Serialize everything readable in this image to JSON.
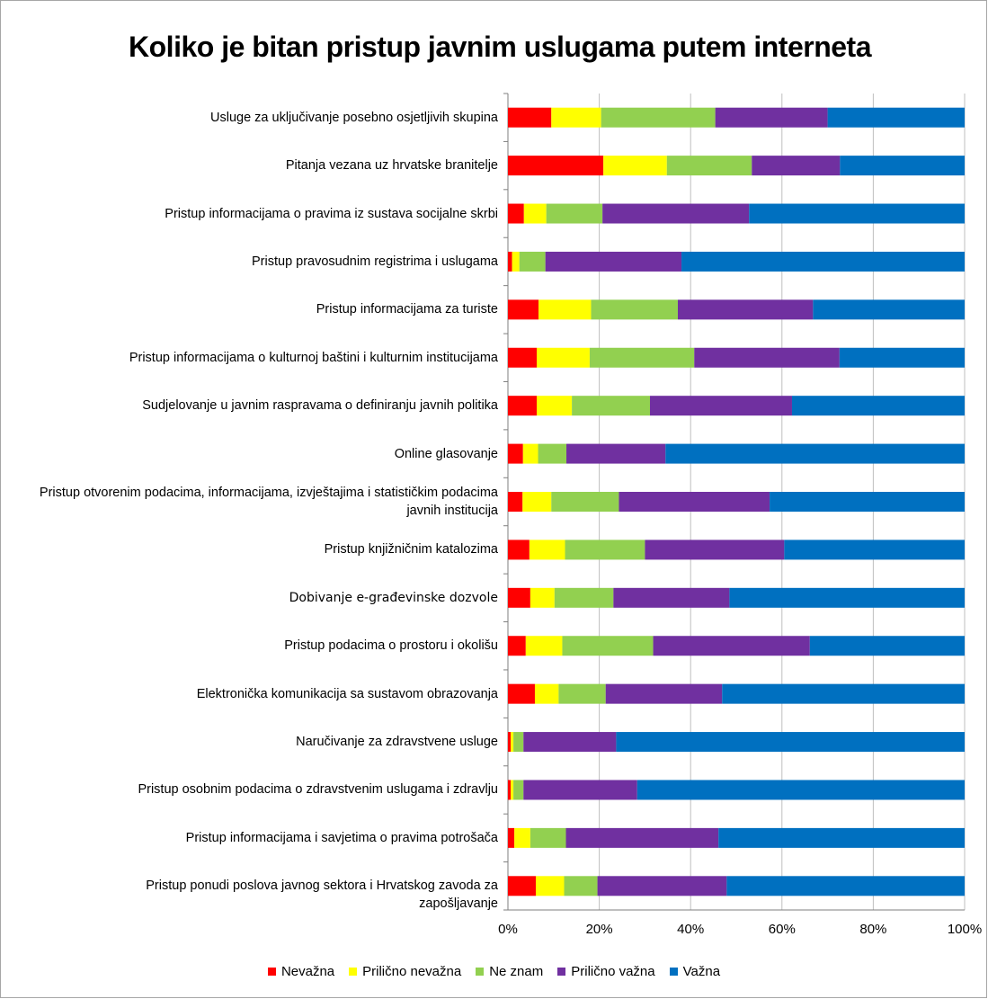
{
  "chart_data": {
    "type": "bar",
    "orientation": "horizontal",
    "stacked": "percent",
    "title": "Koliko je bitan pristup javnim uslugama putem interneta",
    "xlabel": "",
    "ylabel": "",
    "xlim": [
      0,
      100
    ],
    "x_ticks": [
      "0%",
      "20%",
      "40%",
      "60%",
      "80%",
      "100%"
    ],
    "grid": true,
    "legend_position": "bottom",
    "categories": [
      "Usluge za uključivanje posebno osjetljivih skupina",
      "Pitanja vezana uz hrvatske branitelje",
      "Pristup informacijama o pravima iz sustava socijalne skrbi",
      "Pristup pravosudnim registrima i uslugama",
      "Pristup informacijama za turiste",
      "Pristup informacijama o kulturnoj baštini i kulturnim institucijama",
      "Sudjelovanje u javnim raspravama o definiranju javnih politika",
      "Online glasovanje",
      "Pristup otvorenim podacima, informacijama, izvještajima i statističkim podacima javnih institucija",
      "Pristup knjižničnim katalozima",
      "Dobivanje e-građevinske dozvole",
      "Pristup podacima o prostoru i okolišu",
      "Elektronička komunikacija sa sustavom obrazovanja",
      "Naručivanje za zdravstvene usluge",
      "Pristup osobnim podacima o zdravstvenim uslugama i zdravlju",
      "Pristup informacijama i savjetima o pravima potrošača",
      "Pristup ponudi poslova javnog sektora i Hrvatskog zavoda za zapošljavanje"
    ],
    "series": [
      {
        "name": "Nevažna",
        "color": "#ff0000",
        "values": [
          9.5,
          20.9,
          3.5,
          0.9,
          6.7,
          6.3,
          6.3,
          3.3,
          3.2,
          4.7,
          4.9,
          3.9,
          5.9,
          0.6,
          0.6,
          1.4,
          6.1
        ]
      },
      {
        "name": "Prilično nevažna",
        "color": "#ffff00",
        "values": [
          10.9,
          13.9,
          4.9,
          1.6,
          11.5,
          11.6,
          7.7,
          3.3,
          6.3,
          7.8,
          5.3,
          8.0,
          5.2,
          0.6,
          0.6,
          3.5,
          6.2
        ]
      },
      {
        "name": "Ne znam",
        "color": "#92d050",
        "values": [
          25.0,
          18.6,
          12.3,
          5.7,
          19.0,
          22.9,
          17.1,
          6.2,
          14.8,
          17.5,
          12.9,
          19.9,
          10.3,
          2.2,
          2.2,
          7.8,
          7.3
        ]
      },
      {
        "name": "Prilično važna",
        "color": "#7030a0",
        "values": [
          24.6,
          19.3,
          32.1,
          29.8,
          29.6,
          31.8,
          31.1,
          21.7,
          33.0,
          30.5,
          25.4,
          34.3,
          25.5,
          20.3,
          24.9,
          33.4,
          28.3
        ]
      },
      {
        "name": "Važna",
        "color": "#0070c0",
        "values": [
          30.0,
          27.3,
          47.2,
          62.0,
          33.2,
          27.4,
          37.8,
          65.5,
          42.7,
          39.5,
          51.5,
          33.9,
          53.1,
          76.3,
          71.7,
          53.9,
          52.1
        ]
      }
    ]
  }
}
